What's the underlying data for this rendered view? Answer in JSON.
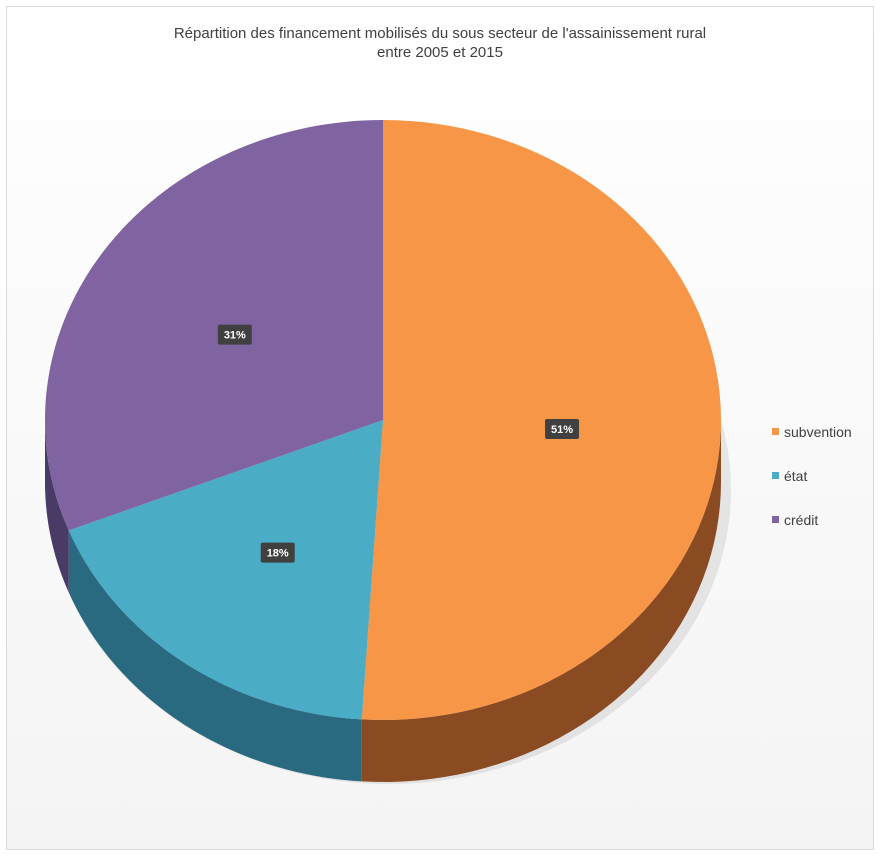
{
  "chart_data": {
    "type": "pie",
    "title": "Répartition des financement mobilisés du sous secteur de l'assainissement rural",
    "subtitle": "entre 2005 et 2015",
    "categories": [
      "subvention",
      "état",
      "crédit"
    ],
    "values": [
      51,
      18,
      31
    ],
    "labels": [
      "51%",
      "18%",
      "31%"
    ],
    "colors": [
      "#f79646",
      "#4bacc6",
      "#8064a2"
    ],
    "side_colors": [
      "#8a4a22",
      "#2a6a80",
      "#4a3a66"
    ],
    "legend_position": "right",
    "style": "3d"
  }
}
